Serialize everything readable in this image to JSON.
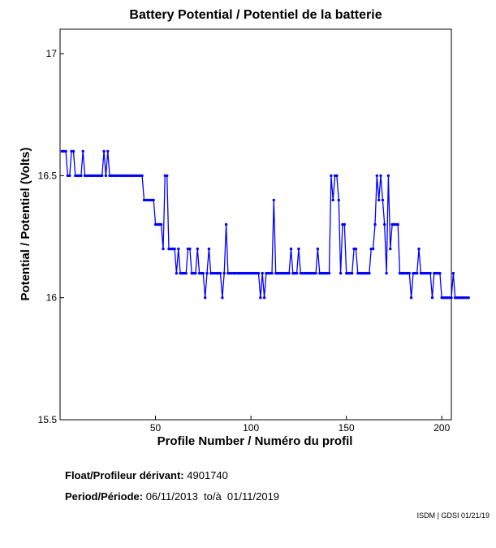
{
  "chart_data": {
    "type": "line",
    "title": "Battery Potential / Potentiel de la batterie",
    "xlabel": "Profile Number / Numéro du profil",
    "ylabel": "Potential / Potentiel (Volts)",
    "xlim": [
      0,
      205
    ],
    "ylim": [
      15.5,
      17.1
    ],
    "xticks": [
      50,
      100,
      150,
      200
    ],
    "yticks": [
      15.5,
      16,
      16.5,
      17
    ],
    "series": [
      {
        "name": "Battery Potential",
        "color": "#0000ff",
        "x_start": 1,
        "values": [
          16.6,
          16.6,
          16.6,
          16.5,
          16.5,
          16.6,
          16.6,
          16.5,
          16.5,
          16.5,
          16.5,
          16.6,
          16.5,
          16.5,
          16.5,
          16.5,
          16.5,
          16.5,
          16.5,
          16.5,
          16.5,
          16.5,
          16.6,
          16.5,
          16.6,
          16.5,
          16.5,
          16.5,
          16.5,
          16.5,
          16.5,
          16.5,
          16.5,
          16.5,
          16.5,
          16.5,
          16.5,
          16.5,
          16.5,
          16.5,
          16.5,
          16.5,
          16.5,
          16.4,
          16.4,
          16.4,
          16.4,
          16.4,
          16.4,
          16.3,
          16.3,
          16.3,
          16.3,
          16.2,
          16.5,
          16.5,
          16.2,
          16.2,
          16.2,
          16.2,
          16.1,
          16.2,
          16.1,
          16.1,
          16.1,
          16.1,
          16.2,
          16.2,
          16.1,
          16.1,
          16.1,
          16.2,
          16.1,
          16.1,
          16.1,
          16.0,
          16.1,
          16.2,
          16.1,
          16.1,
          16.1,
          16.1,
          16.1,
          16.1,
          16.0,
          16.1,
          16.3,
          16.1,
          16.1,
          16.1,
          16.1,
          16.1,
          16.1,
          16.1,
          16.1,
          16.1,
          16.1,
          16.1,
          16.1,
          16.1,
          16.1,
          16.1,
          16.1,
          16.1,
          16.0,
          16.1,
          16.0,
          16.1,
          16.1,
          16.1,
          16.1,
          16.4,
          16.1,
          16.1,
          16.1,
          16.1,
          16.1,
          16.1,
          16.1,
          16.1,
          16.2,
          16.1,
          16.1,
          16.1,
          16.2,
          16.1,
          16.1,
          16.1,
          16.1,
          16.1,
          16.1,
          16.1,
          16.1,
          16.1,
          16.2,
          16.1,
          16.1,
          16.1,
          16.1,
          16.1,
          16.1,
          16.5,
          16.4,
          16.5,
          16.5,
          16.4,
          16.1,
          16.3,
          16.3,
          16.1,
          16.1,
          16.1,
          16.1,
          16.2,
          16.2,
          16.1,
          16.1,
          16.1,
          16.1,
          16.1,
          16.1,
          16.1,
          16.2,
          16.2,
          16.3,
          16.5,
          16.4,
          16.5,
          16.4,
          16.3,
          16.1,
          16.5,
          16.2,
          16.3,
          16.3,
          16.3,
          16.3,
          16.1,
          16.1,
          16.1,
          16.1,
          16.1,
          16.1,
          16.0,
          16.1,
          16.1,
          16.1,
          16.2,
          16.1,
          16.1,
          16.1,
          16.1,
          16.1,
          16.1,
          16.0,
          16.1,
          16.1,
          16.1,
          16.1,
          16.0,
          16.0,
          16.0,
          16.0,
          16.0,
          16.0,
          16.1,
          16.0,
          16.0,
          16.0,
          16.0,
          16.0,
          16.0,
          16.0,
          16.0
        ]
      }
    ]
  },
  "info": {
    "float_label": "Float/Profileur dérivant:",
    "float_value": "4901740",
    "period_label": "Period/Période:",
    "period_value": "06/11/2013  to/à  01/11/2019"
  },
  "footer": "ISDM | GDSI 01/21/19"
}
